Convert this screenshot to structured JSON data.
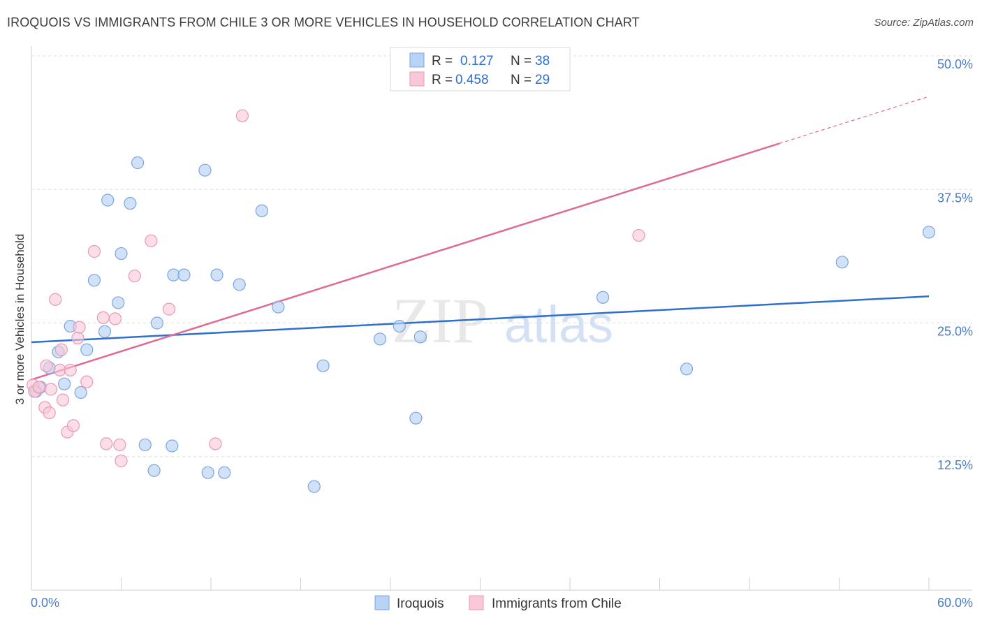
{
  "title": "IROQUOIS VS IMMIGRANTS FROM CHILE 3 OR MORE VEHICLES IN HOUSEHOLD CORRELATION CHART",
  "source": "Source: ZipAtlas.com",
  "watermark": {
    "zip": "ZIP",
    "atlas": "atlas"
  },
  "colors": {
    "iroquois_fill": "#b9d3f5",
    "iroquois_stroke": "#7aa6e0",
    "iroquois_line": "#2f6fd0",
    "chile_fill": "#f8c8d8",
    "chile_stroke": "#e899b4",
    "chile_line": "#e06a95",
    "tick_text": "#4a7cc4",
    "grid": "#dddddd"
  },
  "legend": {
    "rows": [
      {
        "r_label": "R =",
        "r_value": "0.127",
        "n_label": "N =",
        "n_value": "38"
      },
      {
        "r_label": "R =",
        "r_value": "0.458",
        "n_label": "N =",
        "n_value": "29"
      }
    ]
  },
  "chart_data": {
    "type": "scatter",
    "title": "IROQUOIS VS IMMIGRANTS FROM CHILE 3 OR MORE VEHICLES IN HOUSEHOLD CORRELATION CHART",
    "xlabel": "",
    "ylabel": "3 or more Vehicles in Household",
    "xlim": [
      0,
      60
    ],
    "ylim": [
      0,
      50
    ],
    "x_tick_labels": [
      "0.0%",
      "60.0%"
    ],
    "y_ticks": [
      12.5,
      25.0,
      37.5,
      50.0
    ],
    "y_tick_labels": [
      "12.5%",
      "25.0%",
      "37.5%",
      "50.0%"
    ],
    "grid": true,
    "legend_position": "top-center",
    "series": [
      {
        "name": "Iroquois",
        "r": 0.127,
        "n": 38,
        "trend": {
          "x0": 0,
          "y0": 23.2,
          "x1": 60,
          "y1": 27.5
        },
        "points": [
          [
            0.3,
            18.6
          ],
          [
            0.6,
            19.0
          ],
          [
            1.2,
            20.8
          ],
          [
            1.8,
            22.3
          ],
          [
            2.2,
            19.3
          ],
          [
            2.6,
            24.7
          ],
          [
            3.3,
            18.5
          ],
          [
            3.7,
            22.5
          ],
          [
            4.2,
            29.0
          ],
          [
            4.9,
            24.2
          ],
          [
            5.1,
            36.5
          ],
          [
            5.8,
            26.9
          ],
          [
            6.0,
            31.5
          ],
          [
            6.6,
            36.2
          ],
          [
            7.1,
            40.0
          ],
          [
            7.6,
            13.6
          ],
          [
            8.2,
            11.2
          ],
          [
            8.4,
            25.0
          ],
          [
            9.4,
            13.5
          ],
          [
            9.5,
            29.5
          ],
          [
            10.2,
            29.5
          ],
          [
            11.6,
            39.3
          ],
          [
            11.8,
            11.0
          ],
          [
            12.4,
            29.5
          ],
          [
            12.9,
            11.0
          ],
          [
            13.9,
            28.6
          ],
          [
            15.4,
            35.5
          ],
          [
            16.5,
            26.5
          ],
          [
            18.9,
            9.7
          ],
          [
            19.5,
            21.0
          ],
          [
            23.3,
            23.5
          ],
          [
            24.6,
            24.7
          ],
          [
            25.7,
            16.1
          ],
          [
            26.0,
            23.7
          ],
          [
            38.2,
            27.4
          ],
          [
            43.8,
            20.7
          ],
          [
            54.2,
            30.7
          ],
          [
            60.0,
            33.5
          ]
        ]
      },
      {
        "name": "Immigrants from Chile",
        "r": 0.458,
        "n": 29,
        "trend": {
          "x0": 0,
          "y0": 19.7,
          "x1": 50,
          "y1": 41.8
        },
        "trend_dashed_extension": {
          "x0": 50,
          "y0": 41.8,
          "x1": 60,
          "y1": 46.2
        },
        "points": [
          [
            0.1,
            19.2
          ],
          [
            0.2,
            18.6
          ],
          [
            0.5,
            19.0
          ],
          [
            0.9,
            17.1
          ],
          [
            1.0,
            21.0
          ],
          [
            1.2,
            16.6
          ],
          [
            1.3,
            18.8
          ],
          [
            1.6,
            27.2
          ],
          [
            1.9,
            20.6
          ],
          [
            2.0,
            22.5
          ],
          [
            2.1,
            17.8
          ],
          [
            2.4,
            14.8
          ],
          [
            2.6,
            20.6
          ],
          [
            2.8,
            15.4
          ],
          [
            3.1,
            23.6
          ],
          [
            3.2,
            24.6
          ],
          [
            3.7,
            19.5
          ],
          [
            4.2,
            31.7
          ],
          [
            4.8,
            25.5
          ],
          [
            5.0,
            13.7
          ],
          [
            5.6,
            25.4
          ],
          [
            5.9,
            13.6
          ],
          [
            6.0,
            12.1
          ],
          [
            6.9,
            29.4
          ],
          [
            8.0,
            32.7
          ],
          [
            9.2,
            26.3
          ],
          [
            12.3,
            13.7
          ],
          [
            14.1,
            44.4
          ],
          [
            40.6,
            33.2
          ]
        ]
      }
    ]
  },
  "bottom_legend": [
    {
      "label": "Iroquois"
    },
    {
      "label": "Immigrants from Chile"
    }
  ]
}
